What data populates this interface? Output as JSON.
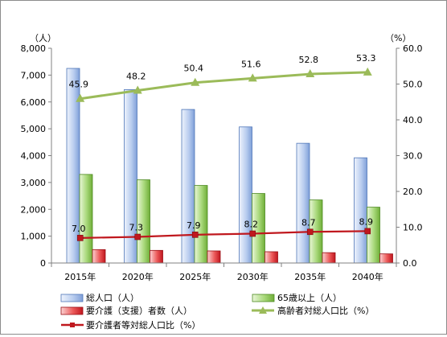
{
  "chart_data": {
    "type": "bar",
    "categories": [
      "2015年",
      "2020年",
      "2025年",
      "2030年",
      "2035年",
      "2040年"
    ],
    "left_axis": {
      "unit": "（人）",
      "ylim": [
        0,
        8000
      ],
      "ticks": [
        "0",
        "1,000",
        "2,000",
        "3,000",
        "4,000",
        "5,000",
        "6,000",
        "7,000",
        "8,000"
      ]
    },
    "right_axis": {
      "unit": "（%）",
      "ylim": [
        0,
        60
      ],
      "ticks": [
        "0.0",
        "10.0",
        "20.0",
        "30.0",
        "40.0",
        "50.0",
        "60.0"
      ]
    },
    "grid": false,
    "legend_position": "bottom",
    "bar_series": [
      {
        "name": "総人口（人）",
        "values": [
          7250,
          6460,
          5720,
          5070,
          4460,
          3920
        ],
        "color": "#7f9fd8"
      },
      {
        "name": "65歳以上（人）",
        "values": [
          3300,
          3100,
          2890,
          2590,
          2350,
          2080
        ],
        "color": "#7fbf3f"
      },
      {
        "name": "要介護（支援）者数（人）",
        "values": [
          500,
          470,
          450,
          420,
          385,
          340
        ],
        "color": "#d81e2a"
      }
    ],
    "line_series": [
      {
        "name": "高齢者対総人口比（%）",
        "values": [
          45.9,
          48.2,
          50.4,
          51.6,
          52.8,
          53.3
        ],
        "labels": [
          "45.9",
          "48.2",
          "50.4",
          "51.6",
          "52.8",
          "53.3"
        ],
        "color": "#9bbb59",
        "marker": "triangle"
      },
      {
        "name": "要介護者等対総人口比（%）",
        "values": [
          7.0,
          7.3,
          7.9,
          8.2,
          8.7,
          8.9
        ],
        "labels": [
          "7.0",
          "7.3",
          "7.9",
          "8.2",
          "8.7",
          "8.9"
        ],
        "color": "#c0181e",
        "marker": "square"
      }
    ]
  }
}
